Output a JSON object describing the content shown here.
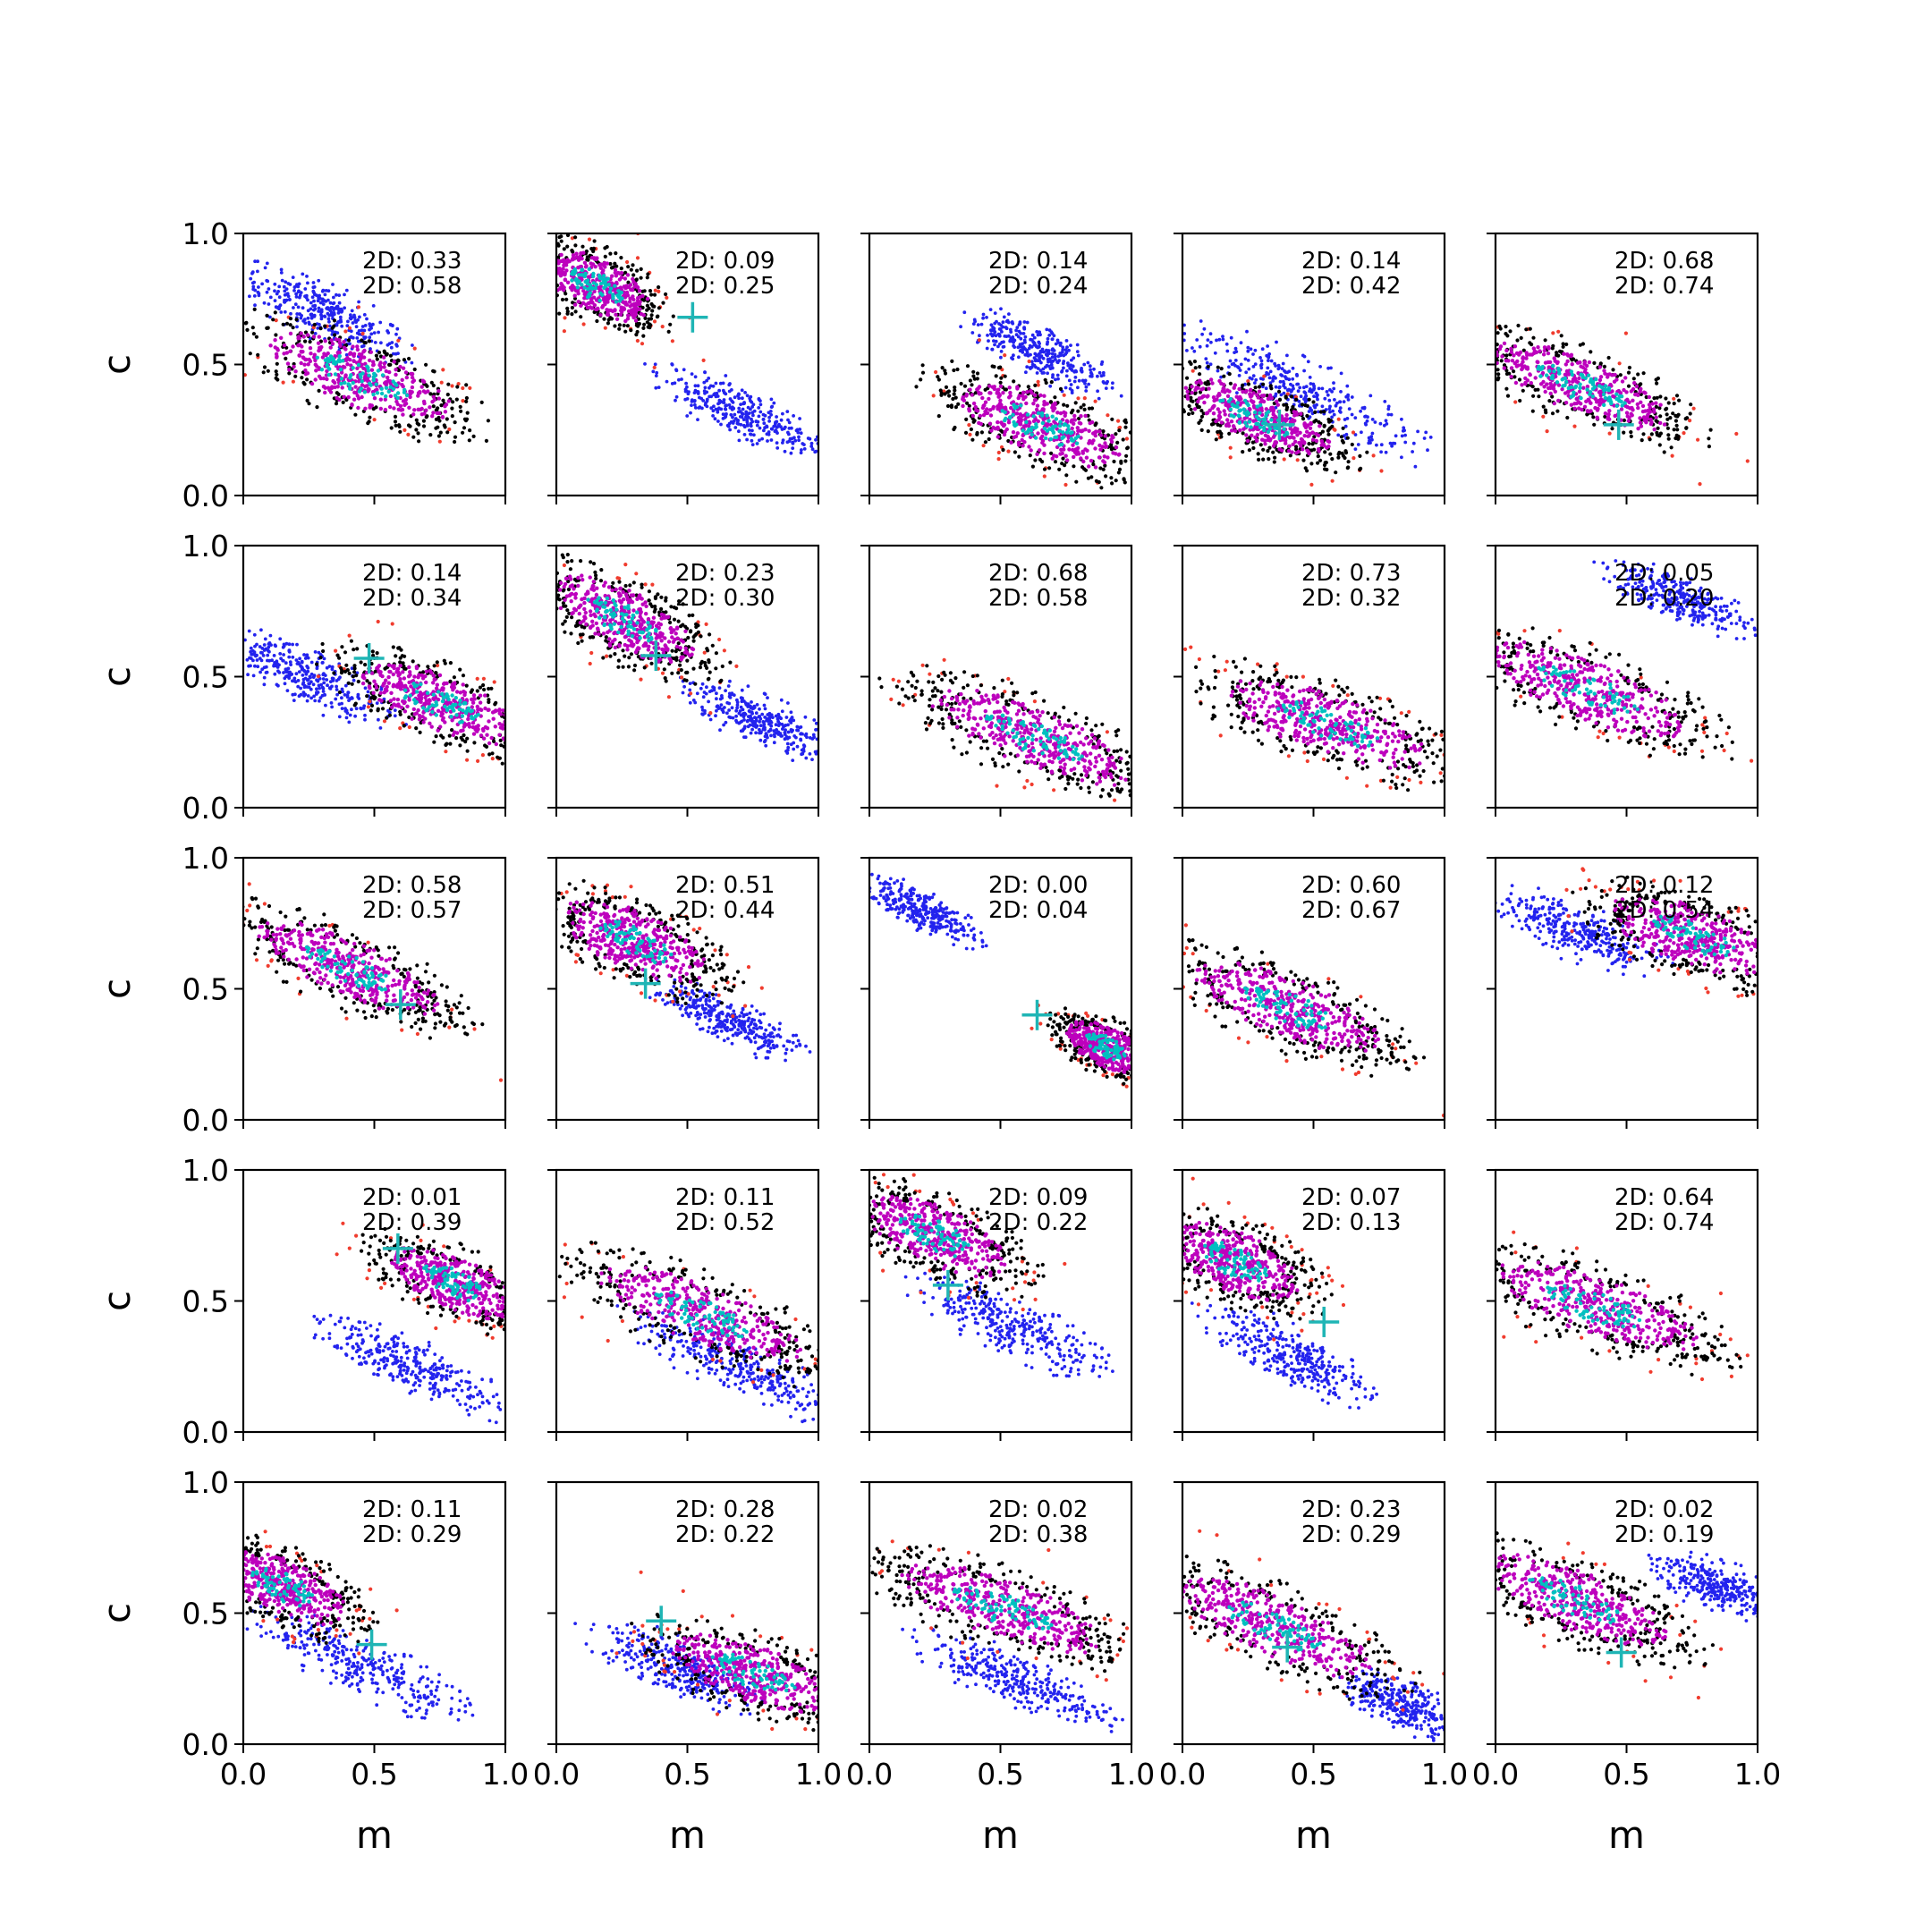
{
  "chart_data": {
    "type": "scatter",
    "grid": "5x5",
    "xlabel": "m",
    "ylabel": "c",
    "xlim": [
      0.0,
      1.0
    ],
    "ylim": [
      0.0,
      1.0
    ],
    "xticks": [
      "0.0",
      "0.5",
      "1.0"
    ],
    "yticks": [
      "0.0",
      "0.5",
      "1.0"
    ],
    "grid_lines": false,
    "legend": "none",
    "series_colors": {
      "outer_red": "#f03c2e",
      "outer_black": "#000000",
      "blue": "#2323ee",
      "magenta": "#bd00bd",
      "core_cyan": "#00c0c0",
      "marker": "#1fb5b5"
    },
    "panels": [
      {
        "ann1": "2D: 0.33",
        "ann2": "2D: 0.58",
        "main": {
          "cx": 0.45,
          "cy": 0.45,
          "major": 0.5,
          "minor": 0.15,
          "slope": -0.4
        },
        "blue": {
          "cx": 0.3,
          "cy": 0.7,
          "major": 0.35,
          "minor": 0.1,
          "slope": -0.5
        },
        "cross": null
      },
      {
        "ann1": "2D: 0.09",
        "ann2": "2D: 0.25",
        "main": {
          "cx": 0.15,
          "cy": 0.8,
          "major": 0.3,
          "minor": 0.14,
          "slope": -0.5
        },
        "blue": {
          "cx": 0.7,
          "cy": 0.32,
          "major": 0.35,
          "minor": 0.09,
          "slope": -0.45
        },
        "cross": [
          0.52,
          0.68
        ]
      },
      {
        "ann1": "2D: 0.14",
        "ann2": "2D: 0.24",
        "main": {
          "cx": 0.65,
          "cy": 0.27,
          "major": 0.45,
          "minor": 0.15,
          "slope": -0.4
        },
        "blue": {
          "cx": 0.65,
          "cy": 0.55,
          "major": 0.3,
          "minor": 0.09,
          "slope": -0.5
        },
        "cross": null
      },
      {
        "ann1": "2D: 0.14",
        "ann2": "2D: 0.42",
        "main": {
          "cx": 0.28,
          "cy": 0.3,
          "major": 0.4,
          "minor": 0.13,
          "slope": -0.4
        },
        "blue": {
          "cx": 0.45,
          "cy": 0.4,
          "major": 0.5,
          "minor": 0.11,
          "slope": -0.5
        },
        "cross": [
          0.37,
          0.27
        ]
      },
      {
        "ann1": "2D: 0.68",
        "ann2": "2D: 0.74",
        "main": {
          "cx": 0.32,
          "cy": 0.42,
          "major": 0.5,
          "minor": 0.14,
          "slope": -0.4
        },
        "blue": null,
        "cross": [
          0.47,
          0.27
        ]
      },
      {
        "ann1": "2D: 0.14",
        "ann2": "2D: 0.34",
        "main": {
          "cx": 0.75,
          "cy": 0.4,
          "major": 0.45,
          "minor": 0.14,
          "slope": -0.4
        },
        "blue": {
          "cx": 0.25,
          "cy": 0.5,
          "major": 0.35,
          "minor": 0.1,
          "slope": -0.45
        },
        "cross": [
          0.48,
          0.57
        ]
      },
      {
        "ann1": "2D: 0.23",
        "ann2": "2D: 0.30",
        "main": {
          "cx": 0.25,
          "cy": 0.72,
          "major": 0.4,
          "minor": 0.15,
          "slope": -0.5
        },
        "blue": {
          "cx": 0.78,
          "cy": 0.33,
          "major": 0.3,
          "minor": 0.09,
          "slope": -0.45
        },
        "cross": [
          0.38,
          0.58
        ]
      },
      {
        "ann1": "2D: 0.68",
        "ann2": "2D: 0.58",
        "main": {
          "cx": 0.62,
          "cy": 0.27,
          "major": 0.55,
          "minor": 0.15,
          "slope": -0.4
        },
        "blue": null,
        "cross": null
      },
      {
        "ann1": "2D: 0.73",
        "ann2": "2D: 0.32",
        "main": {
          "cx": 0.55,
          "cy": 0.32,
          "major": 0.55,
          "minor": 0.15,
          "slope": -0.35
        },
        "blue": null,
        "cross": null
      },
      {
        "ann1": "2D: 0.05",
        "ann2": "2D: 0.20",
        "main": {
          "cx": 0.35,
          "cy": 0.45,
          "major": 0.55,
          "minor": 0.15,
          "slope": -0.4
        },
        "blue": {
          "cx": 0.7,
          "cy": 0.8,
          "major": 0.3,
          "minor": 0.08,
          "slope": -0.4
        },
        "cross": null
      },
      {
        "ann1": "2D: 0.58",
        "ann2": "2D: 0.57",
        "main": {
          "cx": 0.4,
          "cy": 0.58,
          "major": 0.5,
          "minor": 0.14,
          "slope": -0.45
        },
        "blue": null,
        "cross": [
          0.6,
          0.44
        ]
      },
      {
        "ann1": "2D: 0.51",
        "ann2": "2D: 0.44",
        "main": {
          "cx": 0.3,
          "cy": 0.68,
          "major": 0.4,
          "minor": 0.15,
          "slope": -0.45
        },
        "blue": {
          "cx": 0.65,
          "cy": 0.38,
          "major": 0.3,
          "minor": 0.08,
          "slope": -0.45
        },
        "cross": [
          0.34,
          0.52
        ]
      },
      {
        "ann1": "2D: 0.00",
        "ann2": "2D: 0.04",
        "main": {
          "cx": 0.9,
          "cy": 0.28,
          "major": 0.22,
          "minor": 0.1,
          "slope": -0.5
        },
        "blue": {
          "cx": 0.2,
          "cy": 0.8,
          "major": 0.25,
          "minor": 0.07,
          "slope": -0.5
        },
        "cross": [
          0.64,
          0.4
        ]
      },
      {
        "ann1": "2D: 0.60",
        "ann2": "2D: 0.67",
        "main": {
          "cx": 0.4,
          "cy": 0.43,
          "major": 0.5,
          "minor": 0.15,
          "slope": -0.4
        },
        "blue": null,
        "cross": null
      },
      {
        "ann1": "2D: 0.12",
        "ann2": "2D: 0.54",
        "main": {
          "cx": 0.75,
          "cy": 0.7,
          "major": 0.45,
          "minor": 0.15,
          "slope": -0.35
        },
        "blue": {
          "cx": 0.3,
          "cy": 0.72,
          "major": 0.35,
          "minor": 0.1,
          "slope": -0.4
        },
        "cross": null
      },
      {
        "ann1": "2D: 0.01",
        "ann2": "2D: 0.39",
        "main": {
          "cx": 0.8,
          "cy": 0.57,
          "major": 0.35,
          "minor": 0.13,
          "slope": -0.45
        },
        "blue": {
          "cx": 0.65,
          "cy": 0.25,
          "major": 0.4,
          "minor": 0.09,
          "slope": -0.45
        },
        "cross": [
          0.59,
          0.7
        ]
      },
      {
        "ann1": "2D: 0.11",
        "ann2": "2D: 0.52",
        "main": {
          "cx": 0.55,
          "cy": 0.45,
          "major": 0.55,
          "minor": 0.15,
          "slope": -0.4
        },
        "blue": {
          "cx": 0.7,
          "cy": 0.25,
          "major": 0.45,
          "minor": 0.1,
          "slope": -0.45
        },
        "cross": null
      },
      {
        "ann1": "2D: 0.09",
        "ann2": "2D: 0.22",
        "main": {
          "cx": 0.25,
          "cy": 0.75,
          "major": 0.4,
          "minor": 0.15,
          "slope": -0.45
        },
        "blue": {
          "cx": 0.55,
          "cy": 0.4,
          "major": 0.4,
          "minor": 0.1,
          "slope": -0.45
        },
        "cross": [
          0.3,
          0.56
        ]
      },
      {
        "ann1": "2D: 0.07",
        "ann2": "2D: 0.13",
        "main": {
          "cx": 0.2,
          "cy": 0.65,
          "major": 0.35,
          "minor": 0.15,
          "slope": -0.45
        },
        "blue": {
          "cx": 0.4,
          "cy": 0.3,
          "major": 0.35,
          "minor": 0.1,
          "slope": -0.5
        },
        "cross": [
          0.54,
          0.42
        ]
      },
      {
        "ann1": "2D: 0.64",
        "ann2": "2D: 0.74",
        "main": {
          "cx": 0.38,
          "cy": 0.48,
          "major": 0.55,
          "minor": 0.15,
          "slope": -0.35
        },
        "blue": null,
        "cross": null
      },
      {
        "ann1": "2D: 0.11",
        "ann2": "2D: 0.29",
        "main": {
          "cx": 0.15,
          "cy": 0.6,
          "major": 0.35,
          "minor": 0.14,
          "slope": -0.45
        },
        "blue": {
          "cx": 0.45,
          "cy": 0.3,
          "major": 0.45,
          "minor": 0.1,
          "slope": -0.45
        },
        "cross": [
          0.49,
          0.38
        ]
      },
      {
        "ann1": "2D: 0.28",
        "ann2": "2D: 0.22",
        "main": {
          "cx": 0.75,
          "cy": 0.27,
          "major": 0.45,
          "minor": 0.14,
          "slope": -0.35
        },
        "blue": {
          "cx": 0.45,
          "cy": 0.3,
          "major": 0.35,
          "minor": 0.1,
          "slope": -0.4
        },
        "cross": [
          0.4,
          0.47
        ]
      },
      {
        "ann1": "2D: 0.02",
        "ann2": "2D: 0.38",
        "main": {
          "cx": 0.5,
          "cy": 0.52,
          "major": 0.55,
          "minor": 0.15,
          "slope": -0.35
        },
        "blue": {
          "cx": 0.55,
          "cy": 0.25,
          "major": 0.4,
          "minor": 0.09,
          "slope": -0.4
        },
        "cross": null
      },
      {
        "ann1": "2D: 0.23",
        "ann2": "2D: 0.29",
        "main": {
          "cx": 0.35,
          "cy": 0.45,
          "major": 0.55,
          "minor": 0.15,
          "slope": -0.45
        },
        "blue": {
          "cx": 0.85,
          "cy": 0.15,
          "major": 0.25,
          "minor": 0.09,
          "slope": -0.4
        },
        "cross": [
          0.4,
          0.37
        ]
      },
      {
        "ann1": "2D: 0.02",
        "ann2": "2D: 0.19",
        "main": {
          "cx": 0.3,
          "cy": 0.55,
          "major": 0.5,
          "minor": 0.15,
          "slope": -0.4
        },
        "blue": {
          "cx": 0.85,
          "cy": 0.6,
          "major": 0.25,
          "minor": 0.09,
          "slope": -0.35
        },
        "cross": [
          0.48,
          0.35
        ]
      }
    ]
  }
}
